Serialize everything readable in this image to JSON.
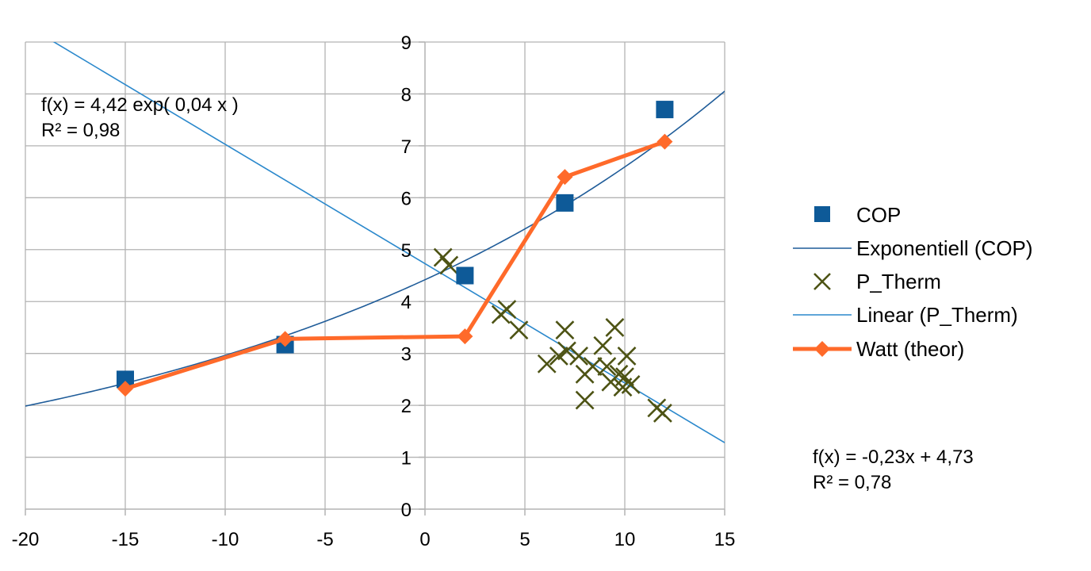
{
  "chart_data": {
    "type": "scatter",
    "xlim": [
      -20,
      15
    ],
    "ylim": [
      0,
      9
    ],
    "x_ticks": [
      -20,
      -15,
      -10,
      -5,
      0,
      5,
      10,
      15
    ],
    "y_ticks": [
      0,
      1,
      2,
      3,
      4,
      5,
      6,
      7,
      8,
      9
    ],
    "grid": true,
    "legend_position": "right",
    "series": [
      {
        "name": "COP",
        "kind": "markers",
        "marker": "square",
        "color": "#0e5a98",
        "points": [
          [
            -15,
            2.5
          ],
          [
            -7,
            3.17
          ],
          [
            2,
            4.5
          ],
          [
            7,
            5.9
          ],
          [
            12,
            7.7
          ]
        ]
      },
      {
        "name": "Exponentiell (COP)",
        "kind": "trendline",
        "model": "exponential",
        "a": 4.42,
        "b": 0.04,
        "color": "#1f5c99"
      },
      {
        "name": "P_Therm",
        "kind": "markers",
        "marker": "x",
        "color": "#4d5314",
        "points": [
          [
            0.9,
            4.85
          ],
          [
            1.2,
            4.7
          ],
          [
            3.8,
            3.75
          ],
          [
            4.1,
            3.85
          ],
          [
            4.7,
            3.45
          ],
          [
            6.1,
            2.8
          ],
          [
            6.7,
            2.95
          ],
          [
            7.0,
            3.45
          ],
          [
            7.1,
            3.05
          ],
          [
            7.7,
            2.95
          ],
          [
            8.0,
            2.6
          ],
          [
            8.0,
            2.1
          ],
          [
            8.4,
            2.75
          ],
          [
            8.9,
            3.15
          ],
          [
            9.1,
            2.75
          ],
          [
            9.3,
            2.45
          ],
          [
            9.5,
            3.5
          ],
          [
            9.7,
            2.6
          ],
          [
            9.9,
            2.35
          ],
          [
            10.0,
            2.55
          ],
          [
            10.1,
            2.95
          ],
          [
            10.3,
            2.4
          ],
          [
            11.6,
            1.95
          ],
          [
            11.9,
            1.85
          ]
        ]
      },
      {
        "name": "Linear (P_Therm)",
        "kind": "trendline",
        "model": "linear",
        "slope": -0.23,
        "intercept": 4.73,
        "color": "#2a88cc"
      },
      {
        "name": "Watt (theor)",
        "kind": "line-markers",
        "marker": "diamond",
        "color": "#ff6a2a",
        "points": [
          [
            -15,
            2.32
          ],
          [
            -7,
            3.28
          ],
          [
            2,
            3.33
          ],
          [
            7,
            6.4
          ],
          [
            12,
            7.08
          ]
        ]
      }
    ],
    "annotations": [
      {
        "id": "exp",
        "lines": [
          "f(x) = 4,42 exp( 0,04 x )",
          "R² = 0,98"
        ]
      },
      {
        "id": "lin",
        "lines": [
          "f(x) = -0,23x + 4,73",
          "R² = 0,78"
        ]
      }
    ]
  }
}
